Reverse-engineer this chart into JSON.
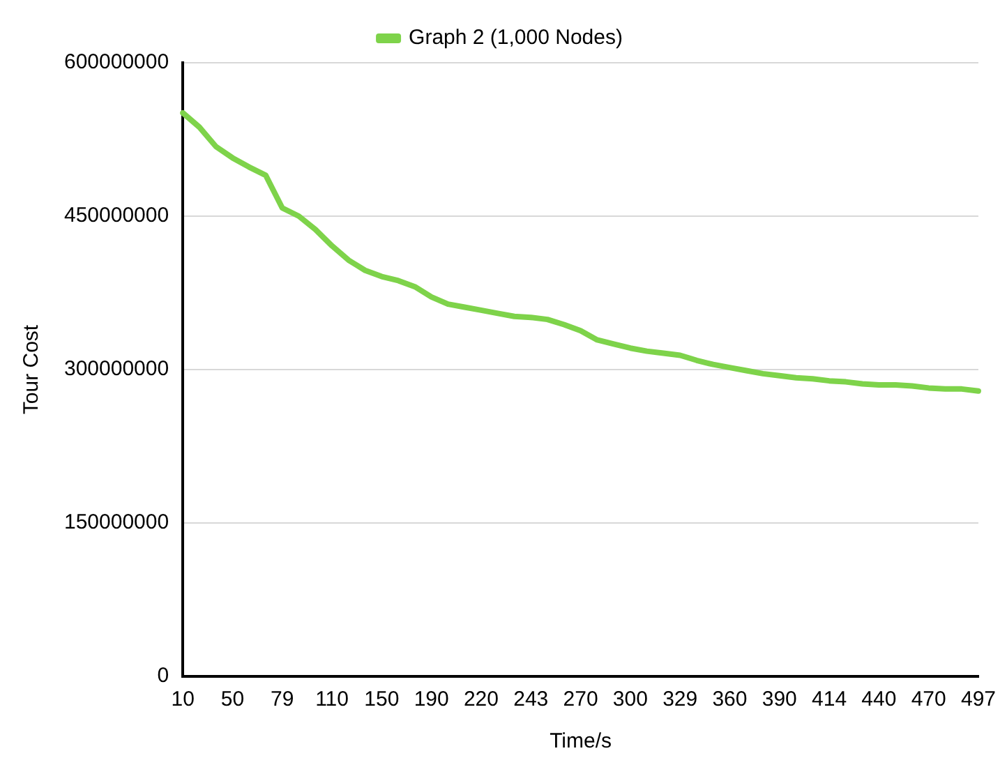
{
  "chart_data": {
    "type": "line",
    "xlabel": "Time/s",
    "ylabel": "Tour Cost",
    "categories": [
      "10",
      null,
      null,
      "50",
      null,
      null,
      "79",
      null,
      null,
      "110",
      null,
      null,
      "150",
      null,
      null,
      "190",
      null,
      null,
      "220",
      null,
      null,
      "243",
      null,
      null,
      "270",
      null,
      null,
      "300",
      null,
      null,
      "329",
      null,
      null,
      "360",
      null,
      null,
      "390",
      null,
      null,
      "414",
      null,
      null,
      "440",
      null,
      null,
      "470",
      null,
      null,
      "497"
    ],
    "series": [
      {
        "name": "Graph 2 (1,000 Nodes)",
        "color": "#7ed34a",
        "values": [
          551000000,
          537000000,
          518000000,
          507000000,
          498000000,
          490000000,
          458000000,
          450000000,
          437000000,
          421000000,
          407000000,
          397000000,
          391000000,
          387000000,
          381000000,
          371000000,
          364000000,
          361000000,
          358000000,
          355000000,
          352000000,
          351000000,
          349000000,
          344000000,
          338000000,
          329000000,
          325000000,
          321000000,
          318000000,
          316000000,
          314000000,
          309000000,
          305000000,
          302000000,
          299000000,
          296000000,
          294000000,
          292000000,
          291000000,
          289000000,
          288000000,
          286000000,
          285000000,
          285000000,
          284000000,
          282000000,
          281000000,
          281000000,
          279000000
        ]
      }
    ],
    "ylim": [
      0,
      600000000
    ],
    "yticks": [
      0,
      150000000,
      300000000,
      450000000,
      600000000
    ],
    "grid": "y",
    "legend": "top",
    "marker": "none",
    "line_style": "solid"
  }
}
